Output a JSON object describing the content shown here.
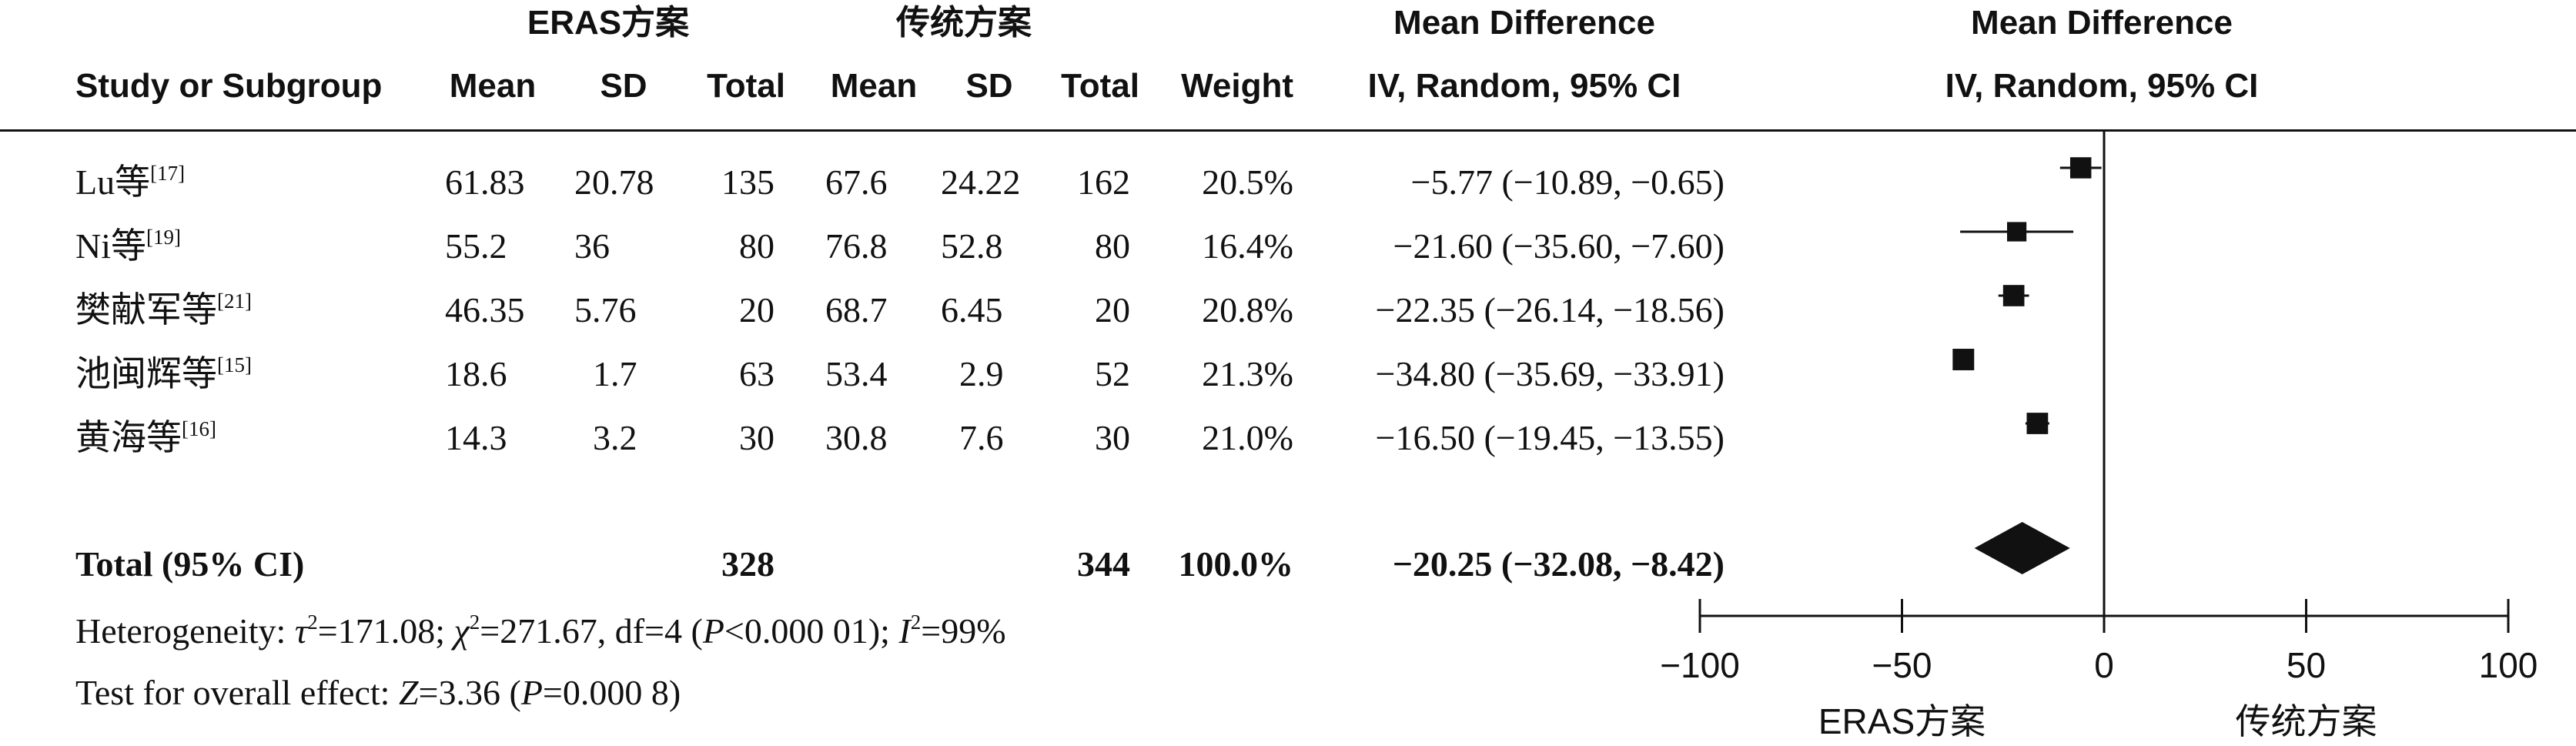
{
  "headers": {
    "group1": "ERAS方案",
    "group2": "传统方案",
    "md1": "Mean Difference",
    "md2": "Mean Difference",
    "study": "Study or Subgroup",
    "mean1": "Mean",
    "sd1": "SD",
    "total1": "Total",
    "mean2": "Mean",
    "sd2": "SD",
    "total2": "Total",
    "weight": "Weight",
    "ci1": "IV, Random, 95% CI",
    "ci2": "IV, Random, 95% CI"
  },
  "rows": [
    {
      "name": "Lu等",
      "ref": "[17]",
      "mean1": "61.83",
      "sd1": "20.78",
      "total1": "135",
      "mean2": "67.6",
      "sd2": "24.22",
      "total2": "162",
      "weight": "20.5%",
      "ci": "−5.77 (−10.89, −0.65)"
    },
    {
      "name": "Ni等",
      "ref": "[19]",
      "mean1": "55.2",
      "sd1": "36",
      "total1": "80",
      "mean2": "76.8",
      "sd2": "52.8",
      "total2": "80",
      "weight": "16.4%",
      "ci": "−21.60 (−35.60, −7.60)"
    },
    {
      "name": "樊献军等",
      "ref": "[21]",
      "mean1": "46.35",
      "sd1": "5.76",
      "total1": "20",
      "mean2": "68.7",
      "sd2": "6.45",
      "total2": "20",
      "weight": "20.8%",
      "ci": "−22.35 (−26.14, −18.56)"
    },
    {
      "name": "池闽辉等",
      "ref": "[15]",
      "mean1": "18.6",
      "sd1": "1.7",
      "total1": "63",
      "mean2": "53.4",
      "sd2": "2.9",
      "total2": "52",
      "weight": "21.3%",
      "ci": "−34.80 (−35.69, −33.91)"
    },
    {
      "name": "黄海等",
      "ref": "[16]",
      "mean1": "14.3",
      "sd1": "3.2",
      "total1": "30",
      "mean2": "30.8",
      "sd2": "7.6",
      "total2": "30",
      "weight": "21.0%",
      "ci": "−16.50 (−19.45, −13.55)"
    }
  ],
  "total_row": {
    "label": "Total (95% CI)",
    "total1": "328",
    "total2": "344",
    "weight": "100.0%",
    "ci": "−20.25 (−32.08, −8.42)"
  },
  "heterogeneity": {
    "prefix": "Heterogeneity: ",
    "tau_sym": "τ",
    "tau_exp": "2",
    "tau_val": "=171.08; ",
    "chi_sym": "χ",
    "chi_exp": "2",
    "chi_val": "=271.67, df=4 (",
    "p_sym": "P",
    "p_val": "<0.000 01); ",
    "i_sym": "I",
    "i_exp": "2",
    "i_val": "=99%"
  },
  "overall_effect": {
    "prefix": "Test for overall effect: ",
    "z_sym": "Z",
    "z_val": "=3.36 (",
    "p_sym": "P",
    "p_val": "=0.000 8)"
  },
  "chart_data": {
    "type": "forest",
    "x_range": [
      -100,
      100
    ],
    "ticks": [
      -100,
      -50,
      0,
      50,
      100
    ],
    "tick_labels": [
      "−100",
      "−50",
      "0",
      "50",
      "100"
    ],
    "axis_label_left": "ERAS方案",
    "axis_label_right": "传统方案",
    "studies": [
      {
        "md": -5.77,
        "lo": -10.89,
        "hi": -0.65,
        "weight": 20.5
      },
      {
        "md": -21.6,
        "lo": -35.6,
        "hi": -7.6,
        "weight": 16.4
      },
      {
        "md": -22.35,
        "lo": -26.14,
        "hi": -18.56,
        "weight": 20.8
      },
      {
        "md": -34.8,
        "lo": -35.69,
        "hi": -33.91,
        "weight": 21.3
      },
      {
        "md": -16.5,
        "lo": -19.45,
        "hi": -13.55,
        "weight": 21.0
      }
    ],
    "pooled": {
      "md": -20.25,
      "lo": -32.08,
      "hi": -8.42
    }
  }
}
